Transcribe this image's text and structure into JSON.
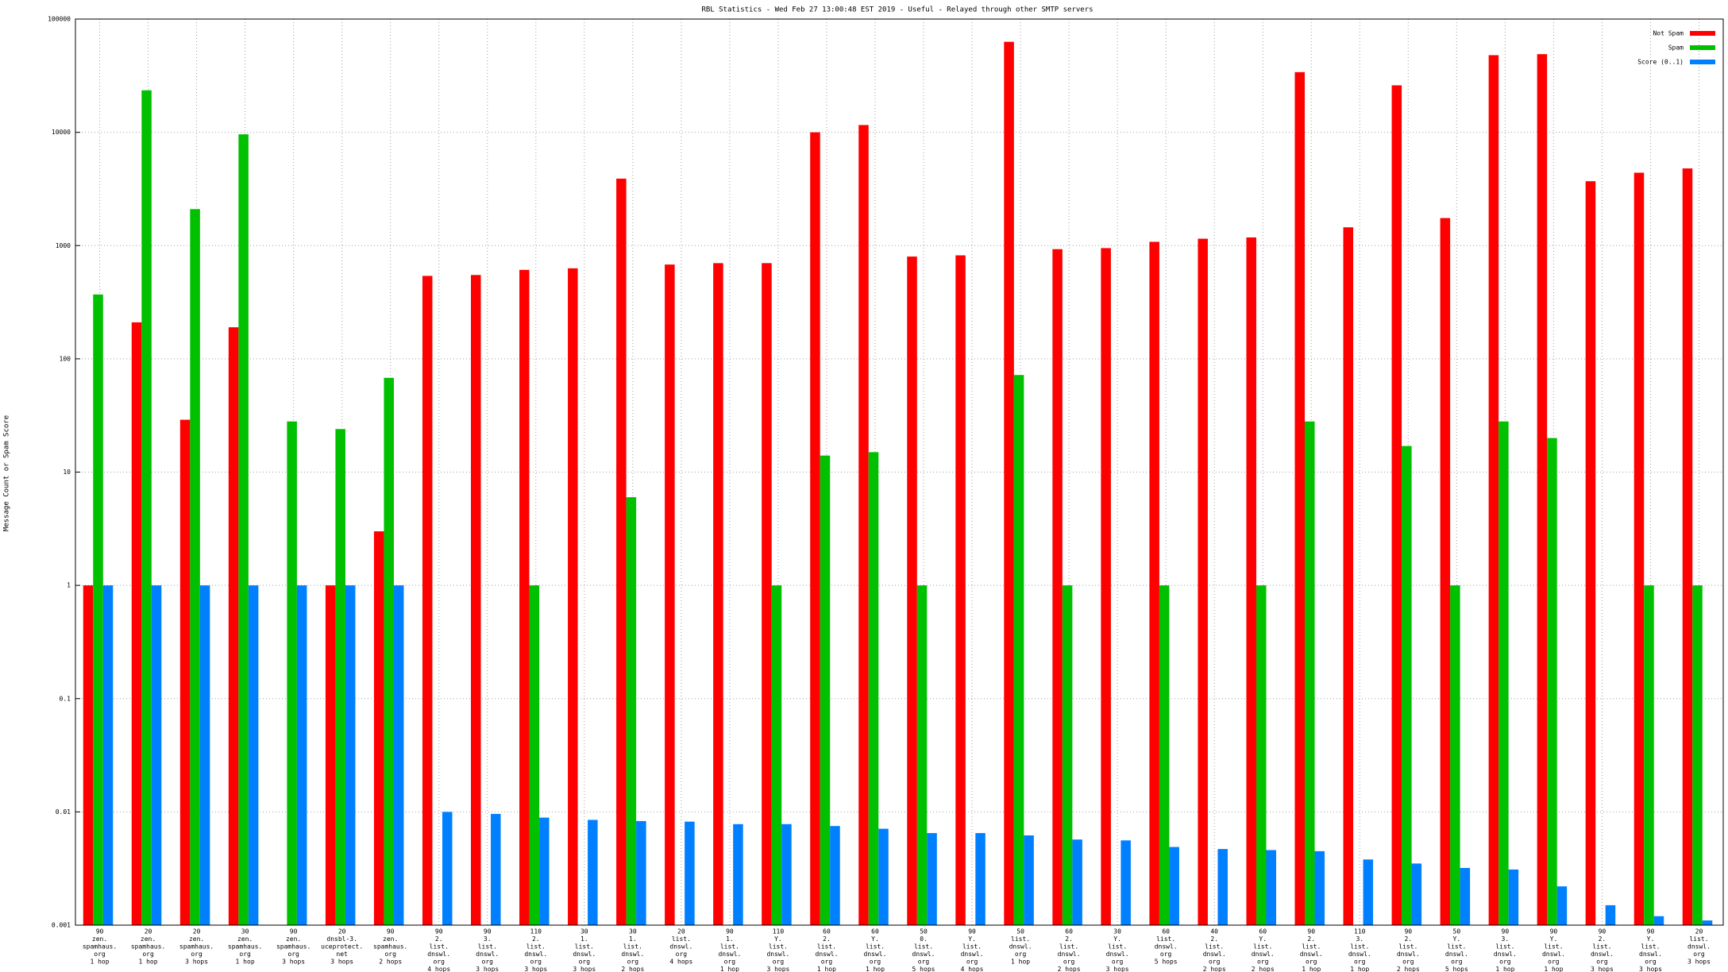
{
  "chart_data": {
    "type": "bar",
    "title": "RBL Statistics - Wed Feb 27 13:00:48 EST 2019 - Useful - Relayed through other SMTP servers",
    "y_label": "Message Count or Spam Score",
    "log_scale": true,
    "grid": true,
    "legend_position": "top-right",
    "ylim": [
      0.001,
      100000
    ],
    "yticks": [
      0.001,
      0.01,
      0.1,
      1,
      10,
      100,
      1000,
      10000,
      100000
    ],
    "categories": [
      [
        "90",
        "zen.",
        "spamhaus.",
        "org",
        "1 hop"
      ],
      [
        "20",
        "zen.",
        "spamhaus.",
        "org",
        "1 hop"
      ],
      [
        "20",
        "zen.",
        "spamhaus.",
        "org",
        "3 hops"
      ],
      [
        "30",
        "zen.",
        "spamhaus.",
        "org",
        "1 hop"
      ],
      [
        "90",
        "zen.",
        "spamhaus.",
        "org",
        "3 hops"
      ],
      [
        "20",
        "dnsbl-3.",
        "uceprotect.",
        "net",
        "3 hops"
      ],
      [
        "90",
        "zen.",
        "spamhaus.",
        "org",
        "2 hops"
      ],
      [
        "90",
        "2.",
        "list.",
        "dnswl.",
        "org",
        "4 hops"
      ],
      [
        "90",
        "3.",
        "list.",
        "dnswl.",
        "org",
        "3 hops"
      ],
      [
        "110",
        "2.",
        "list.",
        "dnswl.",
        "org",
        "3 hops"
      ],
      [
        "30",
        "1.",
        "list.",
        "dnswl.",
        "org",
        "3 hops"
      ],
      [
        "30",
        "1.",
        "list.",
        "dnswl.",
        "org",
        "2 hops"
      ],
      [
        "20",
        "list.",
        "dnswl.",
        "org",
        "4 hops"
      ],
      [
        "90",
        "1.",
        "list.",
        "dnswl.",
        "org",
        "1 hop"
      ],
      [
        "110",
        "Y.",
        "list.",
        "dnswl.",
        "org",
        "3 hops"
      ],
      [
        "60",
        "2.",
        "list.",
        "dnswl.",
        "org",
        "1 hop"
      ],
      [
        "60",
        "Y.",
        "list.",
        "dnswl.",
        "org",
        "1 hop"
      ],
      [
        "50",
        "0.",
        "list.",
        "dnswl.",
        "org",
        "5 hops"
      ],
      [
        "90",
        "Y.",
        "list.",
        "dnswl.",
        "org",
        "4 hops"
      ],
      [
        "50",
        "list.",
        "dnswl.",
        "org",
        "1 hop"
      ],
      [
        "60",
        "2.",
        "list.",
        "dnswl.",
        "org",
        "2 hops"
      ],
      [
        "30",
        "Y.",
        "list.",
        "dnswl.",
        "org",
        "3 hops"
      ],
      [
        "60",
        "list.",
        "dnswl.",
        "org",
        "5 hops"
      ],
      [
        "40",
        "2.",
        "list.",
        "dnswl.",
        "org",
        "2 hops"
      ],
      [
        "60",
        "Y.",
        "list.",
        "dnswl.",
        "org",
        "2 hops"
      ],
      [
        "90",
        "2.",
        "list.",
        "dnswl.",
        "org",
        "1 hop"
      ],
      [
        "110",
        "3.",
        "list.",
        "dnswl.",
        "org",
        "1 hop"
      ],
      [
        "90",
        "2.",
        "list.",
        "dnswl.",
        "org",
        "2 hops"
      ],
      [
        "50",
        "Y.",
        "list.",
        "dnswl.",
        "org",
        "5 hops"
      ],
      [
        "90",
        "3.",
        "list.",
        "dnswl.",
        "org",
        "1 hop"
      ],
      [
        "90",
        "Y.",
        "list.",
        "dnswl.",
        "org",
        "1 hop"
      ],
      [
        "90",
        "2.",
        "list.",
        "dnswl.",
        "org",
        "3 hops"
      ],
      [
        "90",
        "Y.",
        "list.",
        "dnswl.",
        "org",
        "3 hops"
      ],
      [
        "20",
        "list.",
        "dnswl.",
        "org",
        "3 hops"
      ]
    ],
    "series": [
      {
        "name": "Not Spam",
        "color": "#ff0000",
        "values": [
          1,
          210,
          29,
          190,
          null,
          1,
          3,
          540,
          550,
          610,
          630,
          3900,
          680,
          700,
          700,
          10000,
          11600,
          800,
          820,
          63000,
          930,
          950,
          1080,
          1150,
          1180,
          34000,
          1450,
          26000,
          1750,
          48000,
          49000,
          3700,
          4400,
          4800
        ]
      },
      {
        "name": "Spam",
        "color": "#00c000",
        "values": [
          370,
          23500,
          2100,
          9600,
          28,
          24,
          68,
          null,
          null,
          1,
          null,
          6,
          null,
          null,
          1,
          14,
          15,
          1,
          null,
          72,
          1,
          null,
          1,
          null,
          1,
          28,
          null,
          17,
          1,
          28,
          20,
          null,
          1,
          1
        ]
      },
      {
        "name": "Score (0..1)",
        "color": "#0080ff",
        "values": [
          1,
          1,
          1,
          1,
          1,
          1,
          1,
          0.01,
          0.0096,
          0.0089,
          0.0085,
          0.0083,
          0.0082,
          0.0078,
          0.0078,
          0.0075,
          0.0071,
          0.0065,
          0.0065,
          0.0062,
          0.0057,
          0.0056,
          0.0049,
          0.0047,
          0.0046,
          0.0045,
          0.0038,
          0.0035,
          0.0032,
          0.0031,
          0.0022,
          0.0015,
          0.0012,
          0.0011
        ]
      }
    ]
  }
}
